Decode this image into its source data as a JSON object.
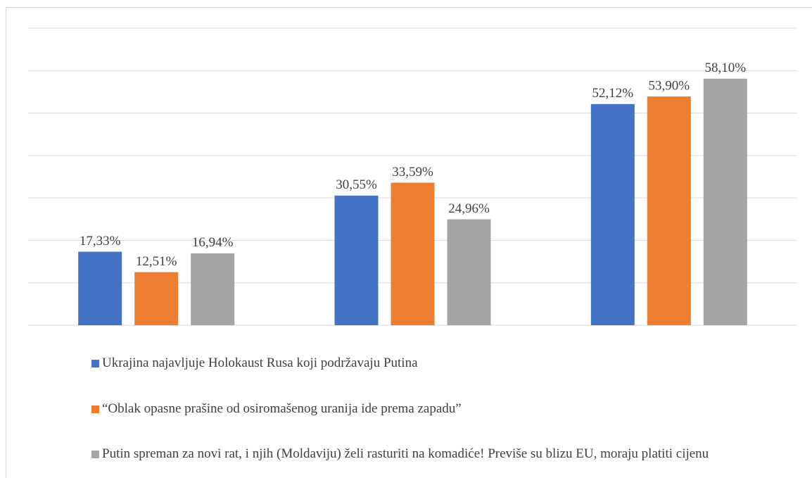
{
  "chart_data": {
    "type": "bar",
    "categories": [
      null,
      null,
      null
    ],
    "series": [
      {
        "name": "Ukrajina najavljuje Holokaust Rusa koji podržavaju Putina",
        "color": "#4472c4",
        "values": [
          17.33,
          30.55,
          52.12
        ],
        "value_labels": [
          "17,33%",
          "30,55%",
          "52,12%"
        ]
      },
      {
        "name": "“Oblak opasne prašine od osiromašenog uranija ide prema zapadu”",
        "color": "#ed7d31",
        "values": [
          12.51,
          33.59,
          53.9
        ],
        "value_labels": [
          "12,51%",
          "33,59%",
          "53,90%"
        ]
      },
      {
        "name": "Putin spreman za novi rat, i njih (Moldaviju) želi rasturiti na komadiće! Previše su blizu EU, moraju platiti cijenu",
        "color": "#a5a5a5",
        "values": [
          16.94,
          24.96,
          58.1
        ],
        "value_labels": [
          "16,94%",
          "24,96%",
          "58,10%"
        ]
      }
    ],
    "ylim": [
      0,
      70
    ],
    "yticks": [
      0,
      10,
      20,
      30,
      40,
      50,
      60,
      70
    ],
    "ytick_labels": false,
    "grid": true,
    "legend": "bottom"
  }
}
